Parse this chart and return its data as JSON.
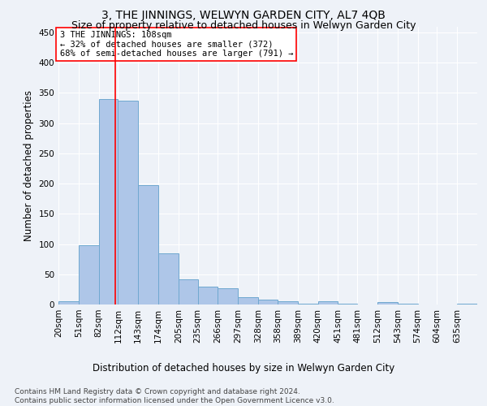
{
  "title": "3, THE JINNINGS, WELWYN GARDEN CITY, AL7 4QB",
  "subtitle": "Size of property relative to detached houses in Welwyn Garden City",
  "xlabel": "Distribution of detached houses by size in Welwyn Garden City",
  "ylabel": "Number of detached properties",
  "footer_line1": "Contains HM Land Registry data © Crown copyright and database right 2024.",
  "footer_line2": "Contains public sector information licensed under the Open Government Licence v3.0.",
  "bin_labels": [
    "20sqm",
    "51sqm",
    "82sqm",
    "112sqm",
    "143sqm",
    "174sqm",
    "205sqm",
    "235sqm",
    "266sqm",
    "297sqm",
    "328sqm",
    "358sqm",
    "389sqm",
    "420sqm",
    "451sqm",
    "481sqm",
    "512sqm",
    "543sqm",
    "574sqm",
    "604sqm",
    "635sqm"
  ],
  "bar_heights": [
    5,
    98,
    340,
    337,
    198,
    85,
    42,
    30,
    27,
    12,
    8,
    5,
    2,
    6,
    1,
    0,
    4,
    1,
    0,
    0,
    2
  ],
  "bar_color": "#aec6e8",
  "bar_edgecolor": "#6fa8d0",
  "red_line_x": 108,
  "bin_edges": [
    20,
    51,
    82,
    112,
    143,
    174,
    205,
    235,
    266,
    297,
    328,
    358,
    389,
    420,
    451,
    481,
    512,
    543,
    574,
    604,
    635,
    666
  ],
  "annotation_title": "3 THE JINNINGS: 108sqm",
  "annotation_line1": "← 32% of detached houses are smaller (372)",
  "annotation_line2": "68% of semi-detached houses are larger (791) →",
  "ylim": [
    0,
    460
  ],
  "yticks": [
    0,
    50,
    100,
    150,
    200,
    250,
    300,
    350,
    400,
    450
  ],
  "background_color": "#eef2f8",
  "grid_color": "#ffffff",
  "title_fontsize": 10,
  "subtitle_fontsize": 9,
  "axis_label_fontsize": 8.5,
  "tick_fontsize": 7.5,
  "annotation_fontsize": 7.5,
  "footer_fontsize": 6.5
}
